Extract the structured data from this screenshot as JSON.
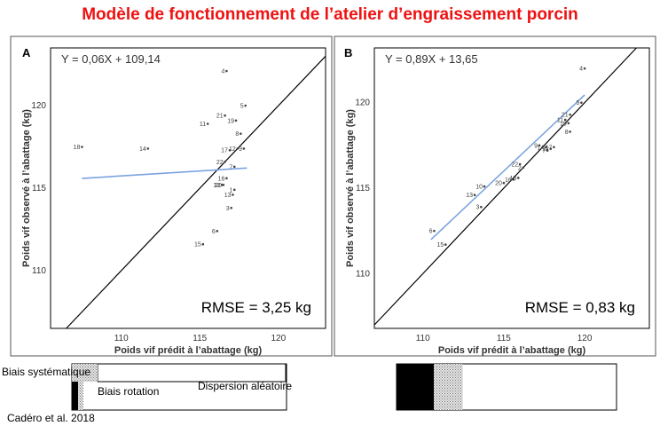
{
  "title": "Modèle de fonctionnement de l’atelier d’engraissement porcin",
  "citation": "Cadéro et al. 2018",
  "legend": {
    "systematic": "Biais systématique",
    "rotation": "Biais rotation",
    "random": "Dispersion aléatoire"
  },
  "chart_data": [
    {
      "type": "scatter",
      "panel": "A",
      "equation": "Y = 0,06X + 109,14",
      "rmse": "RMSE = 3,25  kg",
      "xlabel": "Poids vif prédit à l’abattage (kg)",
      "ylabel": "Poids vif observé à l’abattage (kg)",
      "xlim": [
        105.5,
        123
      ],
      "ylim": [
        106.5,
        123.5
      ],
      "xticks": [
        110,
        115,
        120
      ],
      "yticks": [
        110,
        115,
        120
      ],
      "identity_line": true,
      "regression": {
        "slope": 0.06,
        "intercept": 109.14,
        "x_range": [
          107.5,
          118
        ]
      },
      "points": [
        {
          "label": "4",
          "x": 116.7,
          "y": 122.1
        },
        {
          "label": "5",
          "x": 117.9,
          "y": 120.0
        },
        {
          "label": "21",
          "x": 116.6,
          "y": 119.4
        },
        {
          "label": "11",
          "x": 115.5,
          "y": 118.9
        },
        {
          "label": "19",
          "x": 117.3,
          "y": 119.1
        },
        {
          "label": "8",
          "x": 117.6,
          "y": 118.3
        },
        {
          "label": "18",
          "x": 107.5,
          "y": 117.5
        },
        {
          "label": "14",
          "x": 111.7,
          "y": 117.4
        },
        {
          "label": "17",
          "x": 116.9,
          "y": 117.3
        },
        {
          "label": "12",
          "x": 117.4,
          "y": 117.4
        },
        {
          "label": "9",
          "x": 117.8,
          "y": 117.4
        },
        {
          "label": "22",
          "x": 116.6,
          "y": 116.6
        },
        {
          "label": "7",
          "x": 117.2,
          "y": 116.3
        },
        {
          "label": "16",
          "x": 116.7,
          "y": 115.6
        },
        {
          "label": "10",
          "x": 116.4,
          "y": 115.2
        },
        {
          "label": "20",
          "x": 116.5,
          "y": 115.2
        },
        {
          "label": "1",
          "x": 117.2,
          "y": 114.9
        },
        {
          "label": "13",
          "x": 117.1,
          "y": 114.6
        },
        {
          "label": "3",
          "x": 117.0,
          "y": 113.8
        },
        {
          "label": "6",
          "x": 116.1,
          "y": 112.4
        },
        {
          "label": "15",
          "x": 115.2,
          "y": 111.6
        }
      ]
    },
    {
      "type": "scatter",
      "panel": "B",
      "equation": "Y = 0,89X + 13,65",
      "rmse": "RMSE = 0,83  kg",
      "xlabel": "Poids vif prédit à l’abattage (kg)",
      "ylabel": "Poids vif observé à l’abattage (kg)",
      "xlim": [
        107,
        124
      ],
      "ylim": [
        106.8,
        123.2
      ],
      "xticks": [
        110,
        115,
        120
      ],
      "yticks": [
        110,
        115,
        120
      ],
      "identity_line": true,
      "regression": {
        "slope": 0.89,
        "intercept": 13.65,
        "x_range": [
          110.5,
          120
        ]
      },
      "points": [
        {
          "label": "4",
          "x": 120.0,
          "y": 122.0
        },
        {
          "label": "5",
          "x": 119.8,
          "y": 120.0
        },
        {
          "label": "21",
          "x": 119.1,
          "y": 119.3
        },
        {
          "label": "11",
          "x": 118.8,
          "y": 119.0
        },
        {
          "label": "19",
          "x": 119.0,
          "y": 118.8
        },
        {
          "label": "8",
          "x": 119.1,
          "y": 118.3
        },
        {
          "label": "9",
          "x": 117.2,
          "y": 117.5
        },
        {
          "label": "14",
          "x": 117.6,
          "y": 117.4
        },
        {
          "label": "12",
          "x": 117.9,
          "y": 117.3
        },
        {
          "label": "17",
          "x": 118.1,
          "y": 117.4
        },
        {
          "label": "7",
          "x": 117.7,
          "y": 117.2
        },
        {
          "label": "22",
          "x": 116.0,
          "y": 116.4
        },
        {
          "label": "2",
          "x": 116.2,
          "y": 116.2
        },
        {
          "label": "18",
          "x": 115.9,
          "y": 115.6
        },
        {
          "label": "16",
          "x": 115.6,
          "y": 115.5
        },
        {
          "label": "20",
          "x": 115.0,
          "y": 115.3
        },
        {
          "label": "10",
          "x": 113.8,
          "y": 115.1
        },
        {
          "label": "13",
          "x": 113.2,
          "y": 114.6
        },
        {
          "label": "3",
          "x": 113.6,
          "y": 113.9
        },
        {
          "label": "6",
          "x": 110.7,
          "y": 112.5
        },
        {
          "label": "15",
          "x": 111.4,
          "y": 111.7
        }
      ]
    }
  ],
  "bars": [
    {
      "name": "A",
      "systematic": 0.06,
      "rotation": 0.02,
      "random": 0.92
    },
    {
      "name": "B",
      "systematic": 0.17,
      "rotation": 0.13,
      "random": 0.7
    }
  ]
}
